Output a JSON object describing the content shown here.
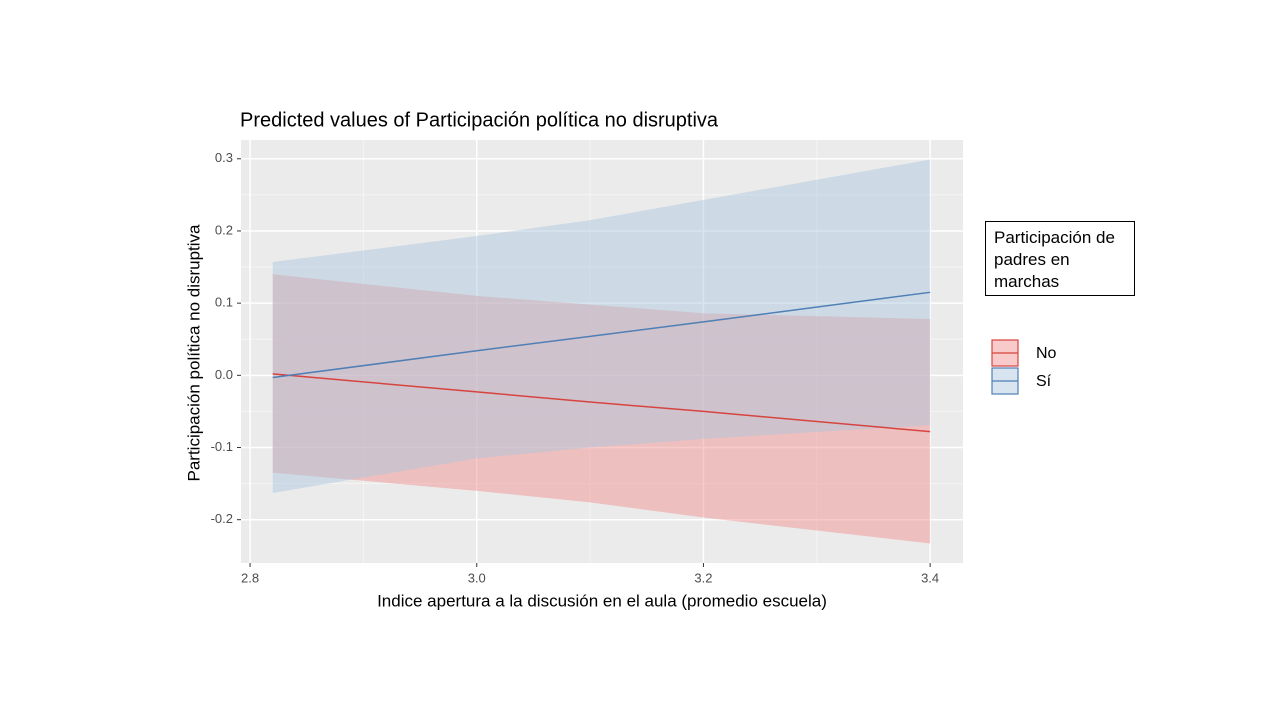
{
  "chart_data": {
    "type": "ribbon-line",
    "title": "Predicted values of Participación política no disruptiva",
    "x_label": "Indice apertura a la discusión en el aula (promedio escuela)",
    "y_label": "Participación política no disruptiva",
    "legend_title": "Participación de padres en marchas",
    "x": [
      2.82,
      3.0,
      3.1,
      3.2,
      3.4
    ],
    "series": [
      {
        "name": "No",
        "color": "#d7443f",
        "fill": "#f08a8a",
        "values": [
          0.002,
          -0.023,
          -0.037,
          -0.05,
          -0.078
        ],
        "upper": [
          0.14,
          0.11,
          0.098,
          0.086,
          0.078
        ],
        "lower": [
          -0.135,
          -0.16,
          -0.176,
          -0.197,
          -0.233
        ]
      },
      {
        "name": "Sí",
        "color": "#4f7fb5",
        "fill": "#a9c5dd",
        "values": [
          -0.003,
          0.034,
          0.054,
          0.074,
          0.115
        ],
        "upper": [
          0.157,
          0.193,
          0.215,
          0.243,
          0.299
        ],
        "lower": [
          -0.163,
          -0.115,
          -0.1,
          -0.088,
          -0.069
        ]
      }
    ],
    "xlim": [
      2.792,
      3.429
    ],
    "ylim": [
      -0.26,
      0.326
    ],
    "xticks": [
      2.8,
      {
        "value": 3.0,
        "label": "3.0"
      },
      3.2,
      3.4
    ],
    "yticks": [
      -0.2,
      -0.1,
      {
        "value": 0,
        "label": "0.0"
      },
      0.1,
      0.2,
      0.3
    ],
    "grid": true,
    "legend_position": "right"
  }
}
